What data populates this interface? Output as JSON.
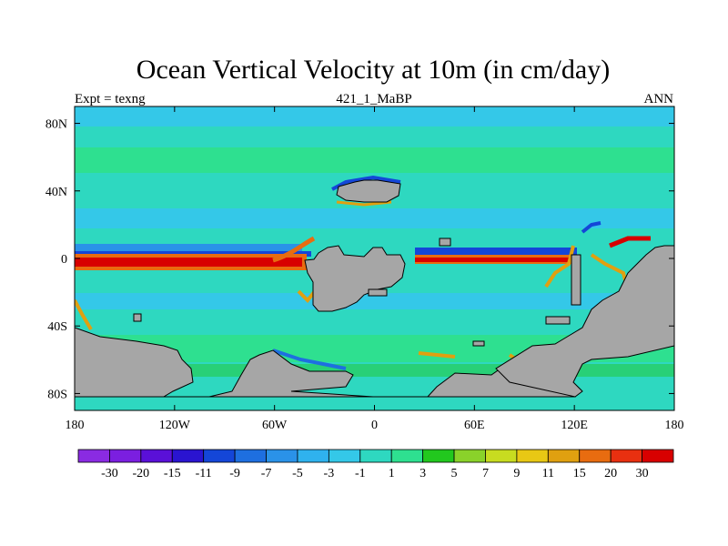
{
  "chart_data": {
    "type": "heatmap",
    "title": "Ocean Vertical Velocity at 10m (in cm/day)",
    "left_string": "Expt = texng",
    "center_string": "421_1_MaBP",
    "right_string": "ANN",
    "x_ticks": [
      "180",
      "120W",
      "60W",
      "0",
      "60E",
      "120E",
      "180"
    ],
    "x_tick_values": [
      -180,
      -120,
      -60,
      0,
      60,
      120,
      180
    ],
    "y_ticks": [
      "80N",
      "40N",
      "0",
      "40S",
      "80S"
    ],
    "y_tick_values": [
      80,
      40,
      0,
      -40,
      -80
    ],
    "xlim": [
      -180,
      180
    ],
    "ylim": [
      -90,
      90
    ],
    "colorbar": {
      "labels": [
        "-30",
        "-20",
        "-15",
        "-11",
        "-9",
        "-7",
        "-5",
        "-3",
        "-1",
        "1",
        "3",
        "5",
        "7",
        "9",
        "11",
        "15",
        "20",
        "30"
      ],
      "colors": [
        "#8a2be2",
        "#7b1fe0",
        "#5a10d8",
        "#2a14d0",
        "#1446d8",
        "#1e6fe0",
        "#2a92e8",
        "#2fb2ee",
        "#34c8e8",
        "#2ed8c0",
        "#2ee090",
        "#22c81e",
        "#8ad22a",
        "#c8dc20",
        "#e8c814",
        "#e0a010",
        "#e86c10",
        "#e83010",
        "#d80000"
      ]
    }
  }
}
